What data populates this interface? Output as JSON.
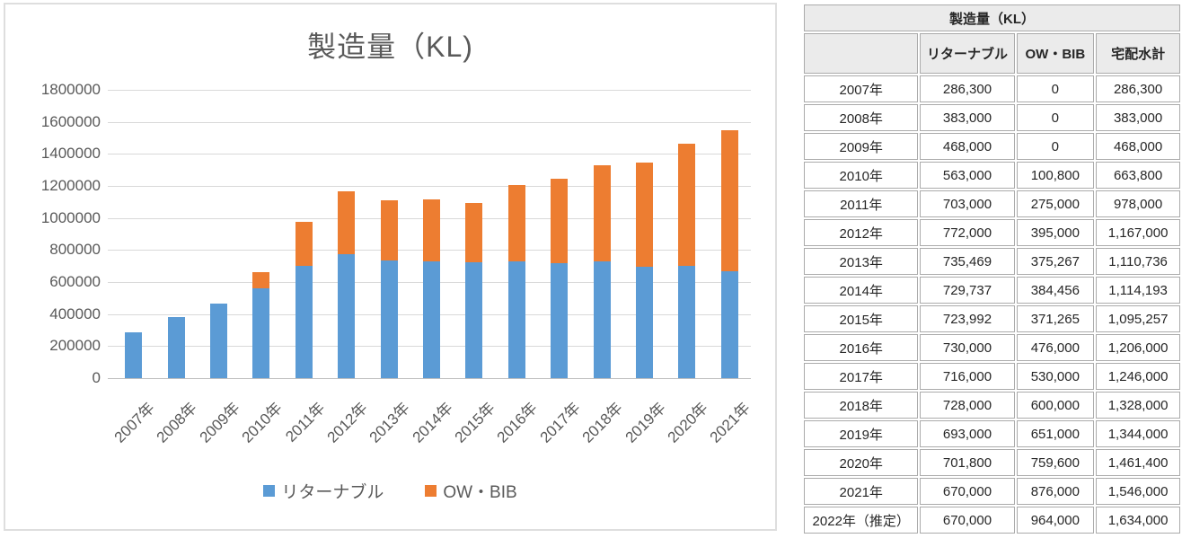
{
  "chart": {
    "title": "製造量（KL)",
    "legend": [
      {
        "label": "リターナブル",
        "color": "#5B9BD5"
      },
      {
        "label": "OW・BIB",
        "color": "#ED7D31"
      }
    ],
    "colors": {
      "title_text": "#595959",
      "axis_text": "#595959",
      "gridline": "#D9D9D9",
      "axis_line": "#BFBFBF",
      "panel_border": "#DEDEDE"
    }
  },
  "chart_data": {
    "type": "bar",
    "stacked": true,
    "title": "製造量（KL)",
    "categories": [
      "2007年",
      "2008年",
      "2009年",
      "2010年",
      "2011年",
      "2012年",
      "2013年",
      "2014年",
      "2015年",
      "2016年",
      "2017年",
      "2018年",
      "2019年",
      "2020年",
      "2021年"
    ],
    "series": [
      {
        "name": "リターナブル",
        "color": "#5B9BD5",
        "values": [
          286300,
          383000,
          468000,
          563000,
          703000,
          772000,
          735469,
          729737,
          723992,
          730000,
          716000,
          728000,
          693000,
          701800,
          670000
        ]
      },
      {
        "name": "OW・BIB",
        "color": "#ED7D31",
        "values": [
          0,
          0,
          0,
          100800,
          275000,
          395000,
          375267,
          384456,
          371265,
          476000,
          530000,
          600000,
          651000,
          759600,
          876000
        ]
      }
    ],
    "ylim": [
      0,
      1800000
    ],
    "ytick_step": 200000,
    "ytick_labels": [
      "0",
      "200000",
      "400000",
      "600000",
      "800000",
      "1000000",
      "1200000",
      "1400000",
      "1600000",
      "1800000"
    ],
    "grid": true,
    "legend_position": "bottom",
    "xlabel": "",
    "ylabel": ""
  },
  "table": {
    "title": "製造量（KL）",
    "columns": [
      "",
      "リターナブル",
      "OW・BIB",
      "宅配水計"
    ],
    "rows": [
      [
        "2007年",
        "286,300",
        "0",
        "286,300"
      ],
      [
        "2008年",
        "383,000",
        "0",
        "383,000"
      ],
      [
        "2009年",
        "468,000",
        "0",
        "468,000"
      ],
      [
        "2010年",
        "563,000",
        "100,800",
        "663,800"
      ],
      [
        "2011年",
        "703,000",
        "275,000",
        "978,000"
      ],
      [
        "2012年",
        "772,000",
        "395,000",
        "1,167,000"
      ],
      [
        "2013年",
        "735,469",
        "375,267",
        "1,110,736"
      ],
      [
        "2014年",
        "729,737",
        "384,456",
        "1,114,193"
      ],
      [
        "2015年",
        "723,992",
        "371,265",
        "1,095,257"
      ],
      [
        "2016年",
        "730,000",
        "476,000",
        "1,206,000"
      ],
      [
        "2017年",
        "716,000",
        "530,000",
        "1,246,000"
      ],
      [
        "2018年",
        "728,000",
        "600,000",
        "1,328,000"
      ],
      [
        "2019年",
        "693,000",
        "651,000",
        "1,344,000"
      ],
      [
        "2020年",
        "701,800",
        "759,600",
        "1,461,400"
      ],
      [
        "2021年",
        "670,000",
        "876,000",
        "1,546,000"
      ],
      [
        "2022年（推定）",
        "670,000",
        "964,000",
        "1,634,000"
      ]
    ]
  }
}
